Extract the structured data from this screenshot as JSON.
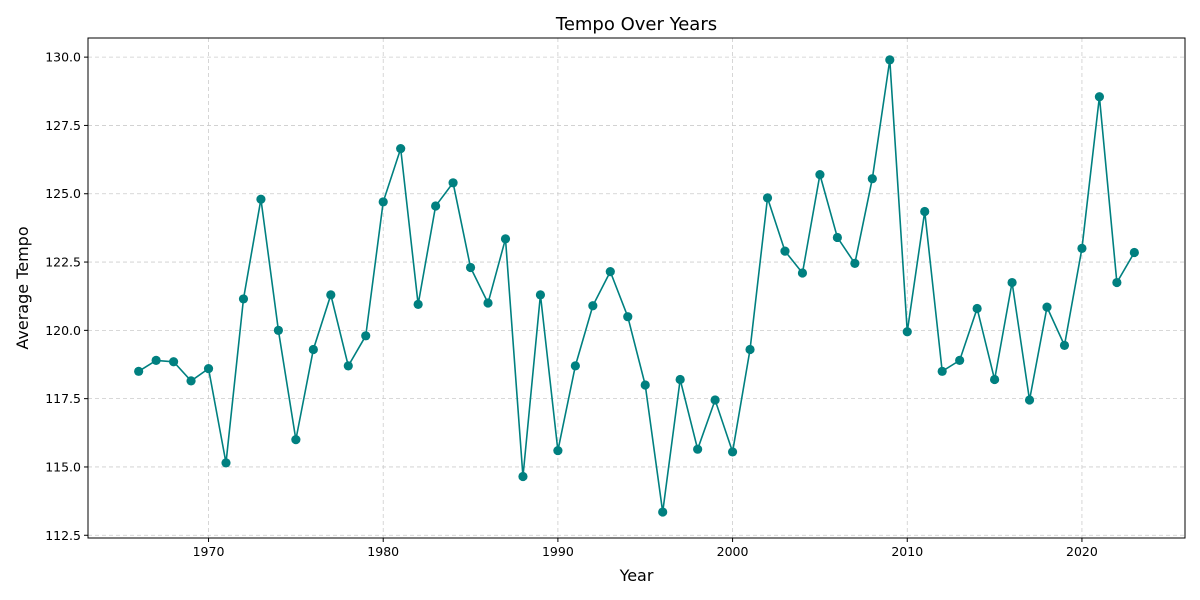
{
  "chart_data": {
    "type": "line",
    "title": "Tempo Over Years",
    "xlabel": "Year",
    "ylabel": "Average Tempo",
    "xlim": [
      1962.9,
      1926.1
    ],
    "ylim": [
      112.5,
      130.7
    ],
    "xticks": [
      1970,
      1980,
      1990,
      2000,
      2010,
      2020
    ],
    "yticks": [
      112.5,
      115.0,
      117.5,
      120.0,
      122.5,
      125.0,
      127.5,
      130.0
    ],
    "grid": true,
    "color": "#008080",
    "series": [
      {
        "x": [
          1966,
          1967,
          1968,
          1969,
          1970,
          1971,
          1972,
          1973,
          1974,
          1975,
          1976,
          1977,
          1978,
          1979,
          1980,
          1981,
          1982,
          1983,
          1984,
          1985,
          1986,
          1987,
          1988,
          1989,
          1990,
          1991,
          1992,
          1993,
          1994,
          1995,
          1996,
          1997,
          1998,
          1999,
          2000,
          2001,
          2002,
          2003,
          2004,
          2005,
          2006,
          2007,
          2008,
          2009,
          2010,
          2011,
          2012,
          2013,
          2014,
          2015,
          2016,
          2017,
          2018,
          2019,
          2020,
          2021,
          2022,
          2023
        ],
        "values": [
          118.5,
          118.9,
          118.85,
          118.15,
          118.6,
          115.15,
          121.15,
          124.8,
          120.0,
          116.0,
          119.3,
          121.3,
          118.7,
          119.8,
          124.7,
          126.65,
          120.95,
          124.55,
          125.4,
          122.3,
          121.0,
          123.35,
          114.65,
          121.3,
          115.6,
          118.7,
          120.9,
          122.15,
          120.5,
          118.0,
          113.35,
          118.2,
          115.65,
          117.45,
          115.55,
          119.3,
          124.85,
          122.9,
          122.1,
          125.7,
          123.4,
          122.45,
          125.55,
          129.9,
          119.95,
          124.35,
          118.5,
          118.9,
          120.8,
          118.2,
          121.75,
          117.45,
          120.85,
          119.45,
          123.0,
          128.55,
          121.75,
          122.85
        ]
      }
    ]
  }
}
